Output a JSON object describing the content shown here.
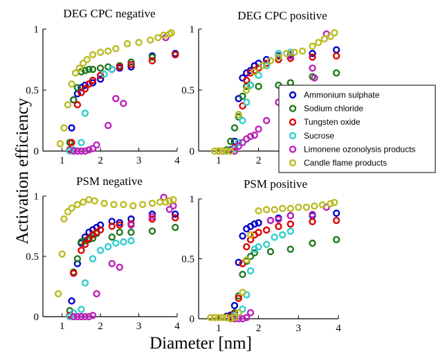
{
  "figure": {
    "ylabel": "Activation efficiency",
    "xlabel": "Diameter [nm]"
  },
  "legend": [
    {
      "name": "Ammonium sulphate",
      "color": "#0000cc"
    },
    {
      "name": "Sodium chloride",
      "color": "#1f7a1f"
    },
    {
      "name": "Tungsten oxide",
      "color": "#dd0000"
    },
    {
      "name": "Sucrose",
      "color": "#33cccc"
    },
    {
      "name": "Limonene ozonolysis products",
      "color": "#bb22bb"
    },
    {
      "name": "Candle flame products",
      "color": "#bbbb22"
    }
  ],
  "chart_data": [
    {
      "type": "scatter",
      "title": "DEG CPC negative",
      "xlim": [
        0.5,
        4
      ],
      "ylim": [
        0,
        1
      ],
      "xticks": [
        1,
        2,
        3,
        4
      ],
      "yticks": [
        0,
        0.5,
        1
      ],
      "series": [
        {
          "name": "Ammonium sulphate",
          "color": "#0000cc",
          "x": [
            1.2,
            1.25,
            1.3,
            1.4,
            1.5,
            1.6,
            1.7,
            1.8,
            2.0,
            2.3,
            2.5,
            2.8,
            3.35,
            3.95
          ],
          "y": [
            0.01,
            0.19,
            0.42,
            0.47,
            0.52,
            0.54,
            0.55,
            0.56,
            0.59,
            0.67,
            0.68,
            0.69,
            0.78,
            0.8
          ]
        },
        {
          "name": "Sodium chloride",
          "color": "#1f7a1f",
          "x": [
            1.2,
            1.3,
            1.4,
            1.5,
            1.6,
            1.7,
            1.8,
            2.0,
            2.2,
            2.5,
            2.8,
            3.35,
            3.95
          ],
          "y": [
            0.07,
            0.42,
            0.52,
            0.65,
            0.66,
            0.67,
            0.67,
            0.68,
            0.69,
            0.7,
            0.73,
            0.77,
            0.79
          ]
        },
        {
          "name": "Tungsten oxide",
          "color": "#dd0000",
          "x": [
            1.2,
            1.25,
            1.4,
            1.5,
            1.6,
            1.7,
            1.8,
            2.0,
            2.3,
            2.5,
            2.8,
            3.35,
            3.95
          ],
          "y": [
            0.01,
            0.07,
            0.38,
            0.48,
            0.51,
            0.55,
            0.58,
            0.62,
            0.67,
            0.69,
            0.71,
            0.74,
            0.79
          ]
        },
        {
          "name": "Sucrose",
          "color": "#33cccc",
          "x": [
            1.2,
            1.3,
            1.5,
            1.6,
            2.1,
            2.3
          ],
          "y": [
            0.0,
            0.01,
            0.07,
            0.31,
            0.63,
            0.67
          ]
        },
        {
          "name": "Limonene ozonolysis products",
          "color": "#bb22bb",
          "x": [
            1.3,
            1.4,
            1.5,
            1.6,
            1.7,
            1.8,
            1.9,
            2.2,
            2.4,
            2.6,
            3.7
          ],
          "y": [
            0.0,
            0.0,
            0.0,
            0.0,
            0.01,
            0.02,
            0.05,
            0.21,
            0.43,
            0.39,
            0.93
          ]
        },
        {
          "name": "Candle flame products",
          "color": "#bbbb22",
          "x": [
            0.95,
            1.05,
            1.15,
            1.25,
            1.35,
            1.45,
            1.55,
            1.65,
            1.8,
            2.0,
            2.2,
            2.4,
            2.7,
            3.0,
            3.3,
            3.5,
            3.65,
            3.8,
            3.85
          ],
          "y": [
            0.06,
            0.19,
            0.38,
            0.55,
            0.64,
            0.68,
            0.72,
            0.75,
            0.79,
            0.81,
            0.82,
            0.84,
            0.88,
            0.89,
            0.91,
            0.93,
            0.95,
            0.96,
            0.97
          ]
        }
      ]
    },
    {
      "type": "scatter",
      "title": "DEG CPC positive",
      "xlim": [
        0.5,
        4
      ],
      "ylim": [
        0,
        1
      ],
      "xticks": [
        1,
        2,
        3,
        4
      ],
      "yticks": [
        0,
        0.5,
        1
      ],
      "series": [
        {
          "name": "Ammonium sulphate",
          "color": "#0000cc",
          "x": [
            1.0,
            1.2,
            1.3,
            1.4,
            1.5,
            1.6,
            1.7,
            1.8,
            1.9,
            2.0,
            2.2,
            2.5,
            2.8,
            3.35,
            3.95
          ],
          "y": [
            0.0,
            0.0,
            0.01,
            0.08,
            0.43,
            0.6,
            0.64,
            0.66,
            0.7,
            0.72,
            0.75,
            0.78,
            0.79,
            0.8,
            0.83
          ]
        },
        {
          "name": "Sodium chloride",
          "color": "#1f7a1f",
          "x": [
            1.2,
            1.3,
            1.4,
            1.5,
            1.6,
            1.7,
            1.8,
            2.0,
            2.5,
            2.8,
            3.35,
            3.95
          ],
          "y": [
            0.01,
            0.08,
            0.19,
            0.28,
            0.45,
            0.53,
            0.54,
            0.53,
            0.54,
            0.56,
            0.61,
            0.64
          ]
        },
        {
          "name": "Tungsten oxide",
          "color": "#dd0000",
          "x": [
            1.1,
            1.3,
            1.4,
            1.5,
            1.6,
            1.7,
            1.8,
            1.9,
            2.0,
            2.2,
            2.5,
            2.8,
            3.35,
            3.95
          ],
          "y": [
            0.0,
            0.0,
            0.03,
            0.07,
            0.37,
            0.58,
            0.64,
            0.66,
            0.68,
            0.72,
            0.75,
            0.76,
            0.77,
            0.78
          ]
        },
        {
          "name": "Sucrose",
          "color": "#33cccc",
          "x": [
            1.4,
            1.5,
            1.6,
            1.7,
            1.8,
            2.0,
            2.2,
            2.5,
            2.8
          ],
          "y": [
            0.02,
            0.07,
            0.25,
            0.4,
            0.54,
            0.62,
            0.7,
            0.8,
            0.81
          ]
        },
        {
          "name": "Limonene ozonolysis products",
          "color": "#bb22bb",
          "x": [
            1.4,
            1.5,
            1.6,
            1.7,
            1.8,
            1.9,
            2.0,
            2.2,
            2.5,
            2.8,
            3.35,
            3.4,
            3.7
          ],
          "y": [
            0.0,
            0.04,
            0.07,
            0.1,
            0.12,
            0.13,
            0.18,
            0.25,
            0.4,
            0.78,
            0.68,
            0.6,
            0.96
          ]
        },
        {
          "name": "Candle flame products",
          "color": "#bbbb22",
          "x": [
            0.9,
            1.0,
            1.1,
            1.2,
            1.3,
            1.5,
            1.7,
            1.9,
            2.1,
            2.3,
            2.5,
            2.7,
            2.9,
            3.1,
            3.35,
            3.5,
            3.65,
            3.8,
            3.9
          ],
          "y": [
            0.0,
            0.0,
            0.0,
            0.0,
            0.0,
            0.3,
            0.5,
            0.65,
            0.7,
            0.74,
            0.77,
            0.8,
            0.81,
            0.82,
            0.86,
            0.89,
            0.92,
            0.94,
            0.97
          ]
        }
      ]
    },
    {
      "type": "scatter",
      "title": "PSM negative",
      "xlim": [
        0.5,
        4
      ],
      "ylim": [
        0,
        1
      ],
      "xticks": [
        1,
        2,
        3,
        4
      ],
      "yticks": [
        0,
        0.5,
        1
      ],
      "series": [
        {
          "name": "Ammonium sulphate",
          "color": "#0000cc",
          "x": [
            1.25,
            1.4,
            1.5,
            1.6,
            1.7,
            1.8,
            1.9,
            2.0,
            2.3,
            2.5,
            2.8,
            3.35,
            3.95
          ],
          "y": [
            0.13,
            0.44,
            0.61,
            0.66,
            0.7,
            0.72,
            0.74,
            0.76,
            0.79,
            0.78,
            0.81,
            0.85,
            0.85
          ]
        },
        {
          "name": "Sodium chloride",
          "color": "#1f7a1f",
          "x": [
            1.2,
            1.3,
            1.4,
            1.5,
            1.6,
            1.7,
            1.8,
            1.9,
            2.3,
            2.5,
            2.8,
            3.35,
            3.95
          ],
          "y": [
            0.05,
            0.37,
            0.48,
            0.62,
            0.63,
            0.64,
            0.65,
            0.69,
            0.66,
            0.7,
            0.7,
            0.71,
            0.74
          ]
        },
        {
          "name": "Tungsten oxide",
          "color": "#dd0000",
          "x": [
            1.2,
            1.3,
            1.5,
            1.6,
            1.7,
            1.8,
            1.9,
            2.0,
            2.3,
            2.5,
            2.8,
            3.35,
            3.95
          ],
          "y": [
            0.01,
            0.36,
            0.55,
            0.6,
            0.65,
            0.68,
            0.7,
            0.72,
            0.75,
            0.76,
            0.77,
            0.81,
            0.82
          ]
        },
        {
          "name": "Sucrose",
          "color": "#33cccc",
          "x": [
            1.2,
            1.3,
            1.5,
            1.6,
            1.8,
            2.0,
            2.2,
            2.4,
            2.6,
            2.8
          ],
          "y": [
            0.0,
            0.03,
            0.06,
            0.28,
            0.48,
            0.55,
            0.58,
            0.61,
            0.62,
            0.63
          ]
        },
        {
          "name": "Limonene ozonolysis products",
          "color": "#bb22bb",
          "x": [
            1.3,
            1.4,
            1.5,
            1.6,
            1.7,
            1.8,
            1.9,
            2.3,
            2.5,
            2.8,
            3.35,
            3.65,
            3.8,
            3.9
          ],
          "y": [
            0.0,
            0.0,
            0.0,
            0.0,
            0.0,
            0.01,
            0.19,
            0.44,
            0.41,
            0.76,
            0.83,
            0.99,
            0.89,
            0.92
          ]
        },
        {
          "name": "Candle flame products",
          "color": "#bbbb22",
          "x": [
            0.9,
            1.0,
            1.05,
            1.15,
            1.25,
            1.4,
            1.55,
            1.7,
            1.85,
            2.1,
            2.35,
            2.6,
            2.85,
            3.1,
            3.35,
            3.55,
            3.7,
            3.8,
            3.9
          ],
          "y": [
            0.19,
            0.52,
            0.81,
            0.87,
            0.9,
            0.93,
            0.95,
            0.97,
            0.96,
            0.94,
            0.93,
            0.93,
            0.92,
            0.93,
            0.94,
            0.95,
            0.95,
            0.96,
            0.97
          ]
        }
      ]
    },
    {
      "type": "scatter",
      "title": "PSM positive",
      "xlim": [
        0.5,
        4
      ],
      "ylim": [
        0,
        1
      ],
      "xticks": [
        1,
        2,
        3,
        4
      ],
      "yticks": [
        0,
        0.5,
        1
      ],
      "series": [
        {
          "name": "Ammonium sulphate",
          "color": "#0000cc",
          "x": [
            1.2,
            1.3,
            1.4,
            1.5,
            1.6,
            1.7,
            1.8,
            1.9,
            2.0,
            2.3,
            2.5,
            2.8,
            3.35,
            3.95
          ],
          "y": [
            0.02,
            0.03,
            0.11,
            0.47,
            0.69,
            0.75,
            0.77,
            0.79,
            0.8,
            0.82,
            0.84,
            0.86,
            0.86,
            0.88
          ]
        },
        {
          "name": "Sodium chloride",
          "color": "#1f7a1f",
          "x": [
            1.3,
            1.4,
            1.5,
            1.6,
            1.7,
            1.8,
            1.9,
            2.3,
            2.8,
            3.35,
            3.95
          ],
          "y": [
            0.01,
            0.05,
            0.19,
            0.37,
            0.48,
            0.52,
            0.55,
            0.56,
            0.58,
            0.63,
            0.66
          ]
        },
        {
          "name": "Tungsten oxide",
          "color": "#dd0000",
          "x": [
            1.2,
            1.3,
            1.4,
            1.5,
            1.6,
            1.7,
            1.8,
            1.9,
            2.0,
            2.2,
            2.5,
            2.8,
            3.35,
            3.95
          ],
          "y": [
            0.01,
            0.02,
            0.04,
            0.17,
            0.46,
            0.6,
            0.66,
            0.7,
            0.72,
            0.74,
            0.77,
            0.79,
            0.81,
            0.82
          ]
        },
        {
          "name": "Sucrose",
          "color": "#33cccc",
          "x": [
            1.3,
            1.4,
            1.5,
            1.6,
            1.7,
            1.8,
            1.9,
            2.0,
            2.2,
            2.4,
            2.6,
            2.8
          ],
          "y": [
            0.0,
            0.03,
            0.05,
            0.08,
            0.2,
            0.4,
            0.58,
            0.6,
            0.62,
            0.68,
            0.7,
            0.73
          ]
        },
        {
          "name": "Limonene ozonolysis products",
          "color": "#bb22bb",
          "x": [
            1.3,
            1.4,
            1.5,
            1.6,
            1.7,
            1.8,
            2.3,
            2.5,
            2.8,
            3.35,
            3.7
          ],
          "y": [
            0.0,
            0.0,
            0.0,
            0.0,
            0.01,
            0.05,
            0.82,
            0.83,
            0.86,
            0.87,
            0.93
          ]
        },
        {
          "name": "Candle flame products",
          "color": "#bbbb22",
          "x": [
            0.8,
            0.9,
            1.0,
            1.1,
            1.2,
            1.3,
            1.4,
            1.5,
            1.6,
            1.7,
            1.8,
            2.0,
            2.2,
            2.4,
            2.6,
            2.8,
            3.0,
            3.2,
            3.4,
            3.6,
            3.8,
            3.9
          ],
          "y": [
            0.01,
            0.01,
            0.01,
            0.01,
            0.01,
            0.0,
            0.01,
            0.05,
            0.22,
            0.49,
            0.7,
            0.9,
            0.91,
            0.91,
            0.92,
            0.92,
            0.93,
            0.93,
            0.94,
            0.95,
            0.96,
            0.97
          ]
        }
      ]
    }
  ]
}
